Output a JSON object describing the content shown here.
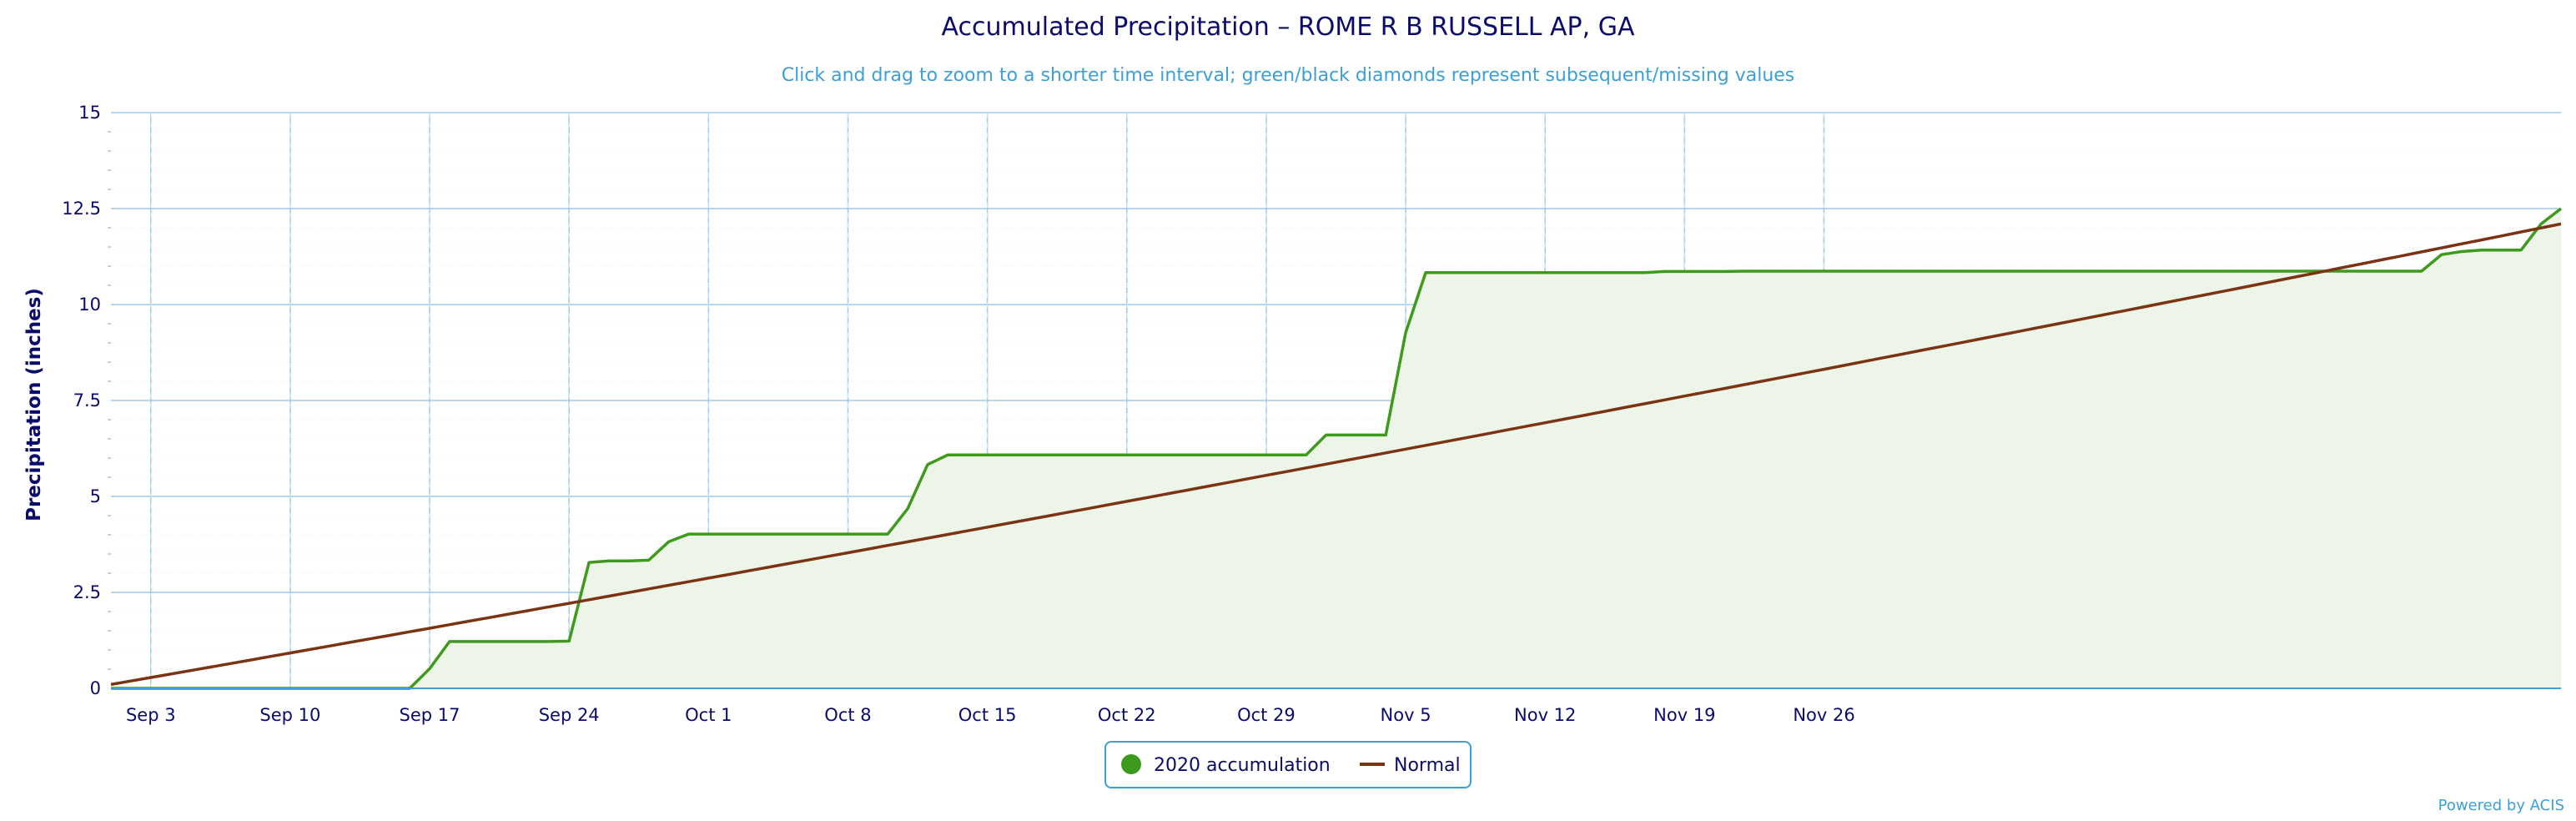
{
  "chart_data": {
    "type": "area",
    "title": "Accumulated Precipitation – ROME R B RUSSELL AP, GA",
    "subtitle": "Click and drag to zoom to a shorter time interval; green/black diamonds represent subsequent/missing values",
    "ylabel": "Precipitation (inches)",
    "xlabel": "",
    "ylim": [
      0,
      15
    ],
    "yticks": [
      "0",
      "2.5",
      "5",
      "7.5",
      "10",
      "12.5",
      "15"
    ],
    "xticks": [
      "Sep 3",
      "Sep 10",
      "Sep 17",
      "Sep 24",
      "Oct 1",
      "Oct 8",
      "Oct 15",
      "Oct 22",
      "Oct 29",
      "Nov 5",
      "Nov 12",
      "Nov 19",
      "Nov 26"
    ],
    "x_start": "Sep 1",
    "grid": true,
    "legend_position": "bottom-center",
    "credit": "Powered by ACIS",
    "colors": {
      "accum": "#3e9a1c",
      "accum_fill": "#edf5e8",
      "normal": "#7b3413",
      "grid": "#9fcbe6",
      "axis_text": "#0b0b6b",
      "subtitle": "#3b9fd8"
    },
    "series": [
      {
        "name": "2020 accumulation",
        "values": [
          0,
          0,
          0,
          0,
          0,
          0,
          0,
          0,
          0,
          0,
          0,
          0,
          0,
          0,
          0,
          0,
          0.51,
          1.22,
          1.22,
          1.22,
          1.22,
          1.22,
          1.22,
          1.23,
          3.28,
          3.32,
          3.32,
          3.34,
          3.82,
          4.02,
          4.02,
          4.02,
          4.02,
          4.02,
          4.02,
          4.02,
          4.02,
          4.02,
          4.02,
          4.02,
          4.68,
          5.83,
          6.08,
          6.08,
          6.08,
          6.08,
          6.08,
          6.08,
          6.08,
          6.08,
          6.08,
          6.08,
          6.08,
          6.08,
          6.08,
          6.08,
          6.08,
          6.08,
          6.08,
          6.08,
          6.08,
          6.6,
          6.6,
          6.6,
          6.6,
          9.27,
          10.83,
          10.83,
          10.83,
          10.83,
          10.83,
          10.83,
          10.83,
          10.83,
          10.83,
          10.83,
          10.83,
          10.83,
          10.86,
          10.86,
          10.86,
          10.86,
          10.87,
          10.87,
          10.87,
          10.87,
          10.87,
          10.87,
          10.87,
          10.87,
          10.87,
          10.87,
          10.87,
          10.87,
          10.87,
          10.87,
          10.87,
          10.87,
          10.87,
          10.87,
          10.87,
          10.87,
          10.87,
          10.87,
          10.87,
          10.87,
          10.87,
          10.87,
          10.87,
          10.87,
          10.87,
          10.87,
          10.87,
          10.87,
          10.87,
          10.87,
          10.87,
          11.3,
          11.38,
          11.42,
          11.42,
          11.42,
          12.1,
          12.5
        ]
      },
      {
        "name": "Normal",
        "start": 0.1,
        "end": 12.1
      }
    ]
  }
}
